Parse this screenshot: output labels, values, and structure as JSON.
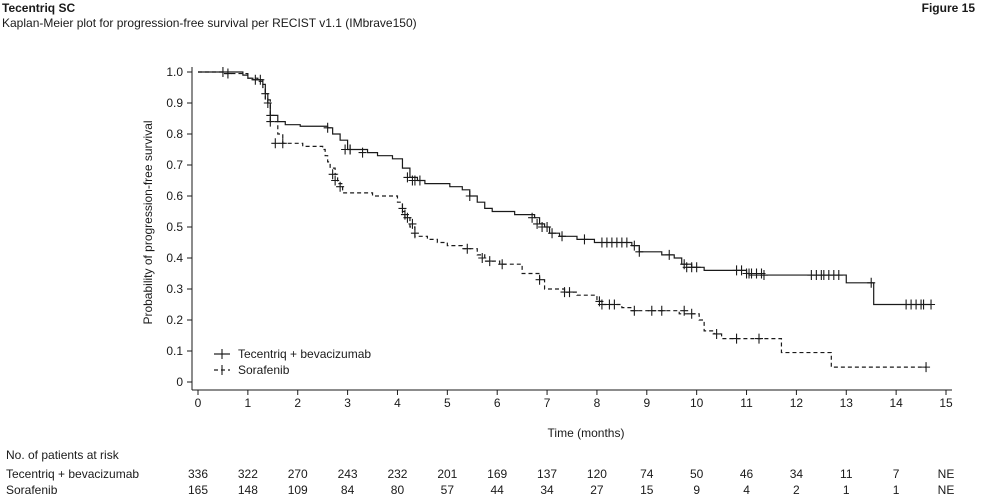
{
  "header": {
    "product": "Tecentriq SC",
    "subtitle": "Kaplan-Meier plot for progression-free survival per RECIST v1.1 (IMbrave150)",
    "figure": "Figure 15"
  },
  "chart_data": {
    "type": "line",
    "subtype": "kaplan-meier-step",
    "xlabel": "Time (months)",
    "ylabel": "Probability of progression-free survival",
    "xlim": [
      0,
      15
    ],
    "ylim": [
      0,
      1.0
    ],
    "x_ticks": [
      0,
      1,
      2,
      3,
      4,
      5,
      6,
      7,
      8,
      9,
      10,
      11,
      12,
      13,
      14,
      15
    ],
    "y_ticks": [
      0,
      0.1,
      0.2,
      0.3,
      0.4,
      0.5,
      0.6,
      0.7,
      0.8,
      0.9,
      1.0
    ],
    "y_tick_labels": [
      "0",
      "0.1",
      "0.2",
      "0.3",
      "0.4",
      "0.5",
      "0.6",
      "0.7",
      "0.8",
      "0.9",
      "1.0"
    ],
    "grid": false,
    "legend_position": "bottom-left",
    "series": [
      {
        "name": "Tecentriq + bevacizumab",
        "line_style": "solid",
        "color": "#1a1a1a",
        "steps": [
          [
            0,
            1.0
          ],
          [
            0.9,
            0.99
          ],
          [
            1.0,
            0.98
          ],
          [
            1.1,
            0.975
          ],
          [
            1.3,
            0.96
          ],
          [
            1.35,
            0.93
          ],
          [
            1.4,
            0.9
          ],
          [
            1.45,
            0.86
          ],
          [
            1.6,
            0.84
          ],
          [
            1.75,
            0.83
          ],
          [
            2.05,
            0.825
          ],
          [
            2.6,
            0.82
          ],
          [
            2.7,
            0.8
          ],
          [
            2.85,
            0.78
          ],
          [
            3.0,
            0.75
          ],
          [
            3.4,
            0.74
          ],
          [
            3.6,
            0.73
          ],
          [
            3.9,
            0.72
          ],
          [
            4.1,
            0.69
          ],
          [
            4.25,
            0.66
          ],
          [
            4.4,
            0.65
          ],
          [
            4.55,
            0.64
          ],
          [
            5.05,
            0.63
          ],
          [
            5.3,
            0.62
          ],
          [
            5.45,
            0.6
          ],
          [
            5.6,
            0.58
          ],
          [
            5.75,
            0.56
          ],
          [
            5.9,
            0.55
          ],
          [
            6.35,
            0.54
          ],
          [
            6.75,
            0.53
          ],
          [
            6.85,
            0.51
          ],
          [
            6.95,
            0.5
          ],
          [
            7.05,
            0.48
          ],
          [
            7.25,
            0.47
          ],
          [
            7.6,
            0.46
          ],
          [
            7.95,
            0.45
          ],
          [
            8.7,
            0.44
          ],
          [
            8.85,
            0.42
          ],
          [
            9.3,
            0.41
          ],
          [
            9.55,
            0.4
          ],
          [
            9.7,
            0.38
          ],
          [
            9.9,
            0.37
          ],
          [
            10.15,
            0.36
          ],
          [
            11.0,
            0.35
          ],
          [
            11.05,
            0.345
          ],
          [
            13.0,
            0.32
          ],
          [
            13.55,
            0.25
          ]
        ],
        "end_x": 14.7,
        "censor": [
          [
            0.5,
            1.0
          ],
          [
            1.15,
            0.975
          ],
          [
            1.25,
            0.975
          ],
          [
            1.35,
            0.93
          ],
          [
            1.4,
            0.9
          ],
          [
            1.45,
            0.86
          ],
          [
            2.6,
            0.82
          ],
          [
            2.95,
            0.75
          ],
          [
            3.05,
            0.75
          ],
          [
            3.3,
            0.74
          ],
          [
            4.2,
            0.66
          ],
          [
            4.3,
            0.65
          ],
          [
            4.35,
            0.65
          ],
          [
            4.45,
            0.65
          ],
          [
            5.45,
            0.6
          ],
          [
            6.7,
            0.53
          ],
          [
            6.8,
            0.51
          ],
          [
            6.9,
            0.5
          ],
          [
            7.0,
            0.5
          ],
          [
            7.1,
            0.48
          ],
          [
            7.3,
            0.47
          ],
          [
            7.75,
            0.46
          ],
          [
            8.1,
            0.45
          ],
          [
            8.2,
            0.45
          ],
          [
            8.3,
            0.45
          ],
          [
            8.4,
            0.45
          ],
          [
            8.5,
            0.45
          ],
          [
            8.6,
            0.45
          ],
          [
            8.75,
            0.44
          ],
          [
            8.85,
            0.42
          ],
          [
            9.45,
            0.41
          ],
          [
            9.75,
            0.38
          ],
          [
            9.8,
            0.37
          ],
          [
            9.9,
            0.37
          ],
          [
            10.0,
            0.37
          ],
          [
            10.8,
            0.36
          ],
          [
            10.9,
            0.36
          ],
          [
            11.0,
            0.35
          ],
          [
            11.05,
            0.35
          ],
          [
            11.1,
            0.35
          ],
          [
            11.2,
            0.35
          ],
          [
            11.3,
            0.35
          ],
          [
            11.35,
            0.345
          ],
          [
            12.3,
            0.345
          ],
          [
            12.4,
            0.345
          ],
          [
            12.5,
            0.345
          ],
          [
            12.55,
            0.345
          ],
          [
            12.65,
            0.345
          ],
          [
            12.75,
            0.345
          ],
          [
            12.85,
            0.345
          ],
          [
            13.5,
            0.32
          ],
          [
            14.2,
            0.25
          ],
          [
            14.3,
            0.25
          ],
          [
            14.4,
            0.25
          ],
          [
            14.5,
            0.25
          ],
          [
            14.55,
            0.25
          ],
          [
            14.7,
            0.25
          ]
        ]
      },
      {
        "name": "Sorafenib",
        "line_style": "dashed",
        "color": "#1a1a1a",
        "steps": [
          [
            0,
            1.0
          ],
          [
            0.5,
            0.995
          ],
          [
            1.0,
            0.98
          ],
          [
            1.2,
            0.97
          ],
          [
            1.3,
            0.95
          ],
          [
            1.35,
            0.91
          ],
          [
            1.45,
            0.84
          ],
          [
            1.6,
            0.8
          ],
          [
            1.7,
            0.77
          ],
          [
            2.1,
            0.76
          ],
          [
            2.5,
            0.75
          ],
          [
            2.55,
            0.73
          ],
          [
            2.6,
            0.71
          ],
          [
            2.65,
            0.69
          ],
          [
            2.75,
            0.67
          ],
          [
            2.8,
            0.64
          ],
          [
            2.9,
            0.61
          ],
          [
            3.5,
            0.6
          ],
          [
            4.0,
            0.58
          ],
          [
            4.1,
            0.55
          ],
          [
            4.15,
            0.53
          ],
          [
            4.25,
            0.5
          ],
          [
            4.35,
            0.47
          ],
          [
            4.6,
            0.46
          ],
          [
            4.8,
            0.45
          ],
          [
            5.0,
            0.44
          ],
          [
            5.3,
            0.43
          ],
          [
            5.6,
            0.41
          ],
          [
            5.75,
            0.39
          ],
          [
            6.05,
            0.38
          ],
          [
            6.5,
            0.35
          ],
          [
            6.85,
            0.33
          ],
          [
            6.95,
            0.3
          ],
          [
            7.35,
            0.29
          ],
          [
            7.6,
            0.28
          ],
          [
            8.0,
            0.26
          ],
          [
            8.1,
            0.25
          ],
          [
            8.5,
            0.24
          ],
          [
            8.7,
            0.23
          ],
          [
            9.65,
            0.22
          ],
          [
            10.05,
            0.2
          ],
          [
            10.15,
            0.165
          ],
          [
            10.35,
            0.155
          ],
          [
            10.5,
            0.14
          ],
          [
            11.7,
            0.095
          ],
          [
            12.7,
            0.048
          ]
        ],
        "end_x": 14.6,
        "censor": [
          [
            0.6,
            0.995
          ],
          [
            1.45,
            0.84
          ],
          [
            1.55,
            0.77
          ],
          [
            1.7,
            0.77
          ],
          [
            2.7,
            0.67
          ],
          [
            2.75,
            0.65
          ],
          [
            2.85,
            0.63
          ],
          [
            3.05,
            0.75
          ],
          [
            4.1,
            0.56
          ],
          [
            4.15,
            0.54
          ],
          [
            4.2,
            0.53
          ],
          [
            4.3,
            0.51
          ],
          [
            4.35,
            0.48
          ],
          [
            5.4,
            0.43
          ],
          [
            5.7,
            0.4
          ],
          [
            5.85,
            0.39
          ],
          [
            6.1,
            0.38
          ],
          [
            6.85,
            0.33
          ],
          [
            7.35,
            0.29
          ],
          [
            7.45,
            0.29
          ],
          [
            8.05,
            0.26
          ],
          [
            8.1,
            0.25
          ],
          [
            8.25,
            0.25
          ],
          [
            8.35,
            0.25
          ],
          [
            8.75,
            0.23
          ],
          [
            9.1,
            0.23
          ],
          [
            9.3,
            0.23
          ],
          [
            9.75,
            0.23
          ],
          [
            9.9,
            0.22
          ],
          [
            10.4,
            0.155
          ],
          [
            10.8,
            0.14
          ],
          [
            11.25,
            0.14
          ],
          [
            14.6,
            0.048
          ]
        ]
      }
    ]
  },
  "risk_table": {
    "title": "No. of patients at risk",
    "rows": [
      {
        "label": "Tecentriq + bevacizumab",
        "values": [
          "336",
          "322",
          "270",
          "243",
          "232",
          "201",
          "169",
          "137",
          "120",
          "74",
          "50",
          "46",
          "34",
          "11",
          "7",
          "NE"
        ]
      },
      {
        "label": "Sorafenib",
        "values": [
          "165",
          "148",
          "109",
          "84",
          "80",
          "57",
          "44",
          "34",
          "27",
          "15",
          "9",
          "4",
          "2",
          "1",
          "1",
          "NE"
        ]
      }
    ]
  }
}
